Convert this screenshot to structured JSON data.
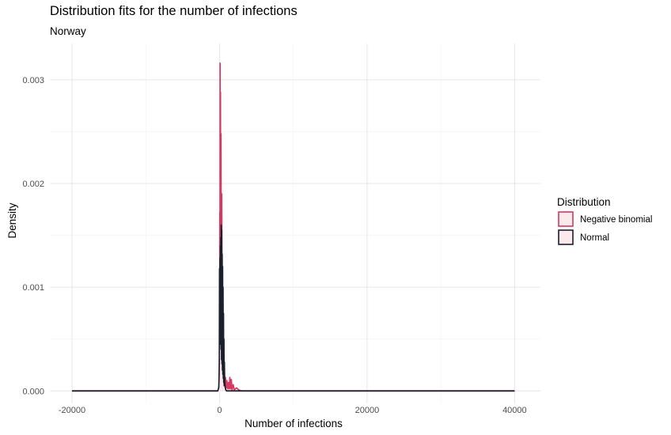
{
  "chart_data": {
    "type": "area",
    "title": "Distribution fits for the number of infections",
    "subtitle": "Norway",
    "xlabel": "Number of infections",
    "ylabel": "Density",
    "xlim": [
      -23000,
      43500
    ],
    "ylim": [
      -0.00012,
      0.00335
    ],
    "x_ticks": [
      -20000,
      0,
      20000,
      40000
    ],
    "x_tick_labels": [
      "-20000",
      "0",
      "20000",
      "40000"
    ],
    "x_minor": [
      -10000,
      10000,
      30000
    ],
    "y_ticks": [
      0.0,
      0.001,
      0.002,
      0.003
    ],
    "y_tick_labels": [
      "0.000",
      "0.001",
      "0.002",
      "0.003"
    ],
    "y_minor": [
      0.0005,
      0.0015,
      0.0025
    ],
    "grid": true,
    "legend": {
      "title": "Distribution",
      "placement": "right",
      "entries": [
        "Negative binomial",
        "Normal"
      ]
    },
    "series": [
      {
        "name": "Negative binomial",
        "color": "#d6395f",
        "fill": "#fbeaec",
        "x": [
          -20000,
          -300,
          -200,
          -150,
          -100,
          -80,
          -50,
          -30,
          0,
          20,
          40,
          60,
          80,
          100,
          130,
          160,
          200,
          250,
          300,
          350,
          400,
          450,
          500,
          560,
          620,
          700,
          800,
          900,
          1000,
          1100,
          1200,
          1300,
          1400,
          1500,
          1600,
          1700,
          1850,
          2000,
          2300,
          2600,
          3000,
          40000
        ],
        "y": [
          0,
          0,
          0,
          1e-05,
          2e-05,
          4e-05,
          6e-05,
          8e-05,
          3e-05,
          0.00013,
          0.00172,
          0.0002,
          0.00316,
          0.0004,
          0.00288,
          0.0007,
          0.00248,
          0.0006,
          0.0019,
          0.00032,
          0.00086,
          0.00018,
          0.00048,
          0.0001,
          0.00024,
          6e-05,
          0.00013,
          3e-05,
          0.0001,
          2e-05,
          8e-05,
          2e-05,
          0.00013,
          2e-05,
          0.00011,
          1e-05,
          6e-05,
          1e-05,
          3e-05,
          1e-05,
          0,
          0
        ]
      },
      {
        "name": "Normal",
        "color": "#1b1e2b",
        "fill": "#fbeaec",
        "x": [
          -20000,
          -250,
          -150,
          -100,
          -60,
          -30,
          0,
          30,
          60,
          90,
          120,
          150,
          180,
          210,
          240,
          270,
          300,
          330,
          360,
          390,
          420,
          450,
          480,
          510,
          540,
          570,
          600,
          630,
          660,
          700,
          760,
          850,
          950,
          40000
        ],
        "y": [
          0,
          0,
          2e-05,
          4e-05,
          0.00015,
          0.0003,
          0.00118,
          0.0006,
          0.00128,
          0.00045,
          0.0014,
          0.0005,
          0.00148,
          0.0004,
          0.0016,
          0.0003,
          0.00155,
          0.00026,
          0.00132,
          0.0002,
          0.0012,
          0.00016,
          0.001,
          0.00012,
          0.00075,
          8e-05,
          0.0005,
          5e-05,
          0.00028,
          0.0001,
          4e-05,
          1e-05,
          0,
          0
        ]
      }
    ]
  }
}
